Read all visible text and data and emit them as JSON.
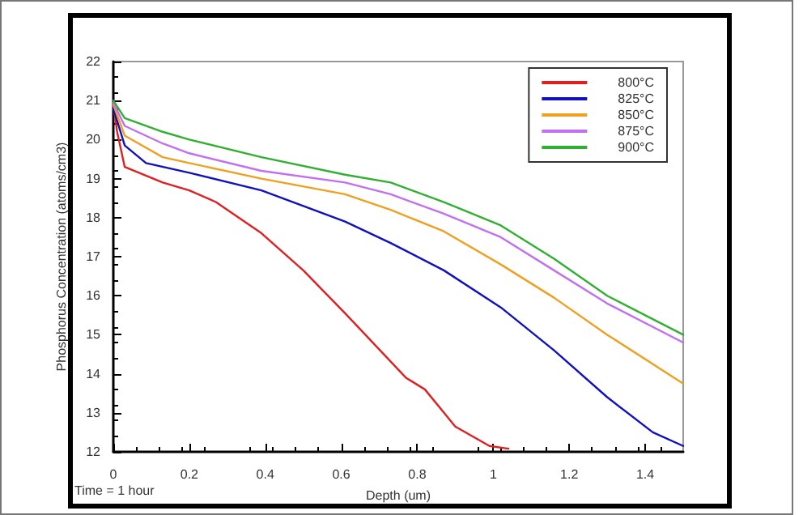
{
  "chart_data": {
    "type": "line",
    "xlabel": "Depth (um)",
    "ylabel": "Phosphorus Concentration (atoms/cm3)",
    "annotations": [
      "Time = 1 hour"
    ],
    "xlim": [
      0,
      1.5
    ],
    "xticks": [
      0,
      0.2,
      0.4,
      0.6,
      0.8,
      1,
      1.2,
      1.4
    ],
    "ylim": [
      12,
      22
    ],
    "yticks": [
      12,
      13,
      14,
      15,
      16,
      17,
      18,
      19,
      20,
      21,
      22
    ],
    "grid": false,
    "legend": "top right",
    "marker": "none",
    "line_style": "solid",
    "series": [
      {
        "name": "800°C",
        "color": "#e02020",
        "x": [
          0,
          0.01,
          0.03,
          0.13,
          0.2,
          0.27,
          0.39,
          0.5,
          0.61,
          0.77,
          0.82,
          0.9,
          0.99,
          1.04
        ],
        "values": [
          20.9,
          20.2,
          19.3,
          18.9,
          18.7,
          18.4,
          17.6,
          16.65,
          15.55,
          13.9,
          13.6,
          12.65,
          12.15,
          12.08
        ]
      },
      {
        "name": "825°C",
        "color": "#1010c0",
        "x": [
          0,
          0.03,
          0.086,
          0.2,
          0.39,
          0.5,
          0.61,
          0.73,
          0.87,
          1.02,
          1.16,
          1.3,
          1.42,
          1.5
        ],
        "values": [
          20.8,
          19.85,
          19.4,
          19.15,
          18.7,
          18.3,
          17.9,
          17.35,
          16.65,
          15.7,
          14.6,
          13.4,
          12.5,
          12.15
        ]
      },
      {
        "name": "850°C",
        "color": "#f0a020",
        "x": [
          0,
          0.03,
          0.13,
          0.2,
          0.39,
          0.61,
          0.73,
          0.87,
          1.02,
          1.16,
          1.3,
          1.5
        ],
        "values": [
          20.9,
          20.1,
          19.55,
          19.4,
          19.0,
          18.6,
          18.2,
          17.65,
          16.8,
          15.95,
          15.0,
          13.75
        ]
      },
      {
        "name": "875°C",
        "color": "#c070f0",
        "x": [
          0,
          0.03,
          0.13,
          0.2,
          0.39,
          0.61,
          0.73,
          0.87,
          1.02,
          1.16,
          1.3,
          1.5
        ],
        "values": [
          20.95,
          20.35,
          19.9,
          19.65,
          19.2,
          18.9,
          18.6,
          18.1,
          17.5,
          16.65,
          15.8,
          14.8
        ]
      },
      {
        "name": "900°C",
        "color": "#30b030",
        "x": [
          0,
          0.03,
          0.13,
          0.2,
          0.39,
          0.61,
          0.73,
          0.87,
          1.02,
          1.16,
          1.3,
          1.5
        ],
        "values": [
          21.0,
          20.55,
          20.2,
          20.0,
          19.55,
          19.1,
          18.9,
          18.4,
          17.8,
          16.95,
          16.0,
          15.0
        ]
      }
    ]
  }
}
